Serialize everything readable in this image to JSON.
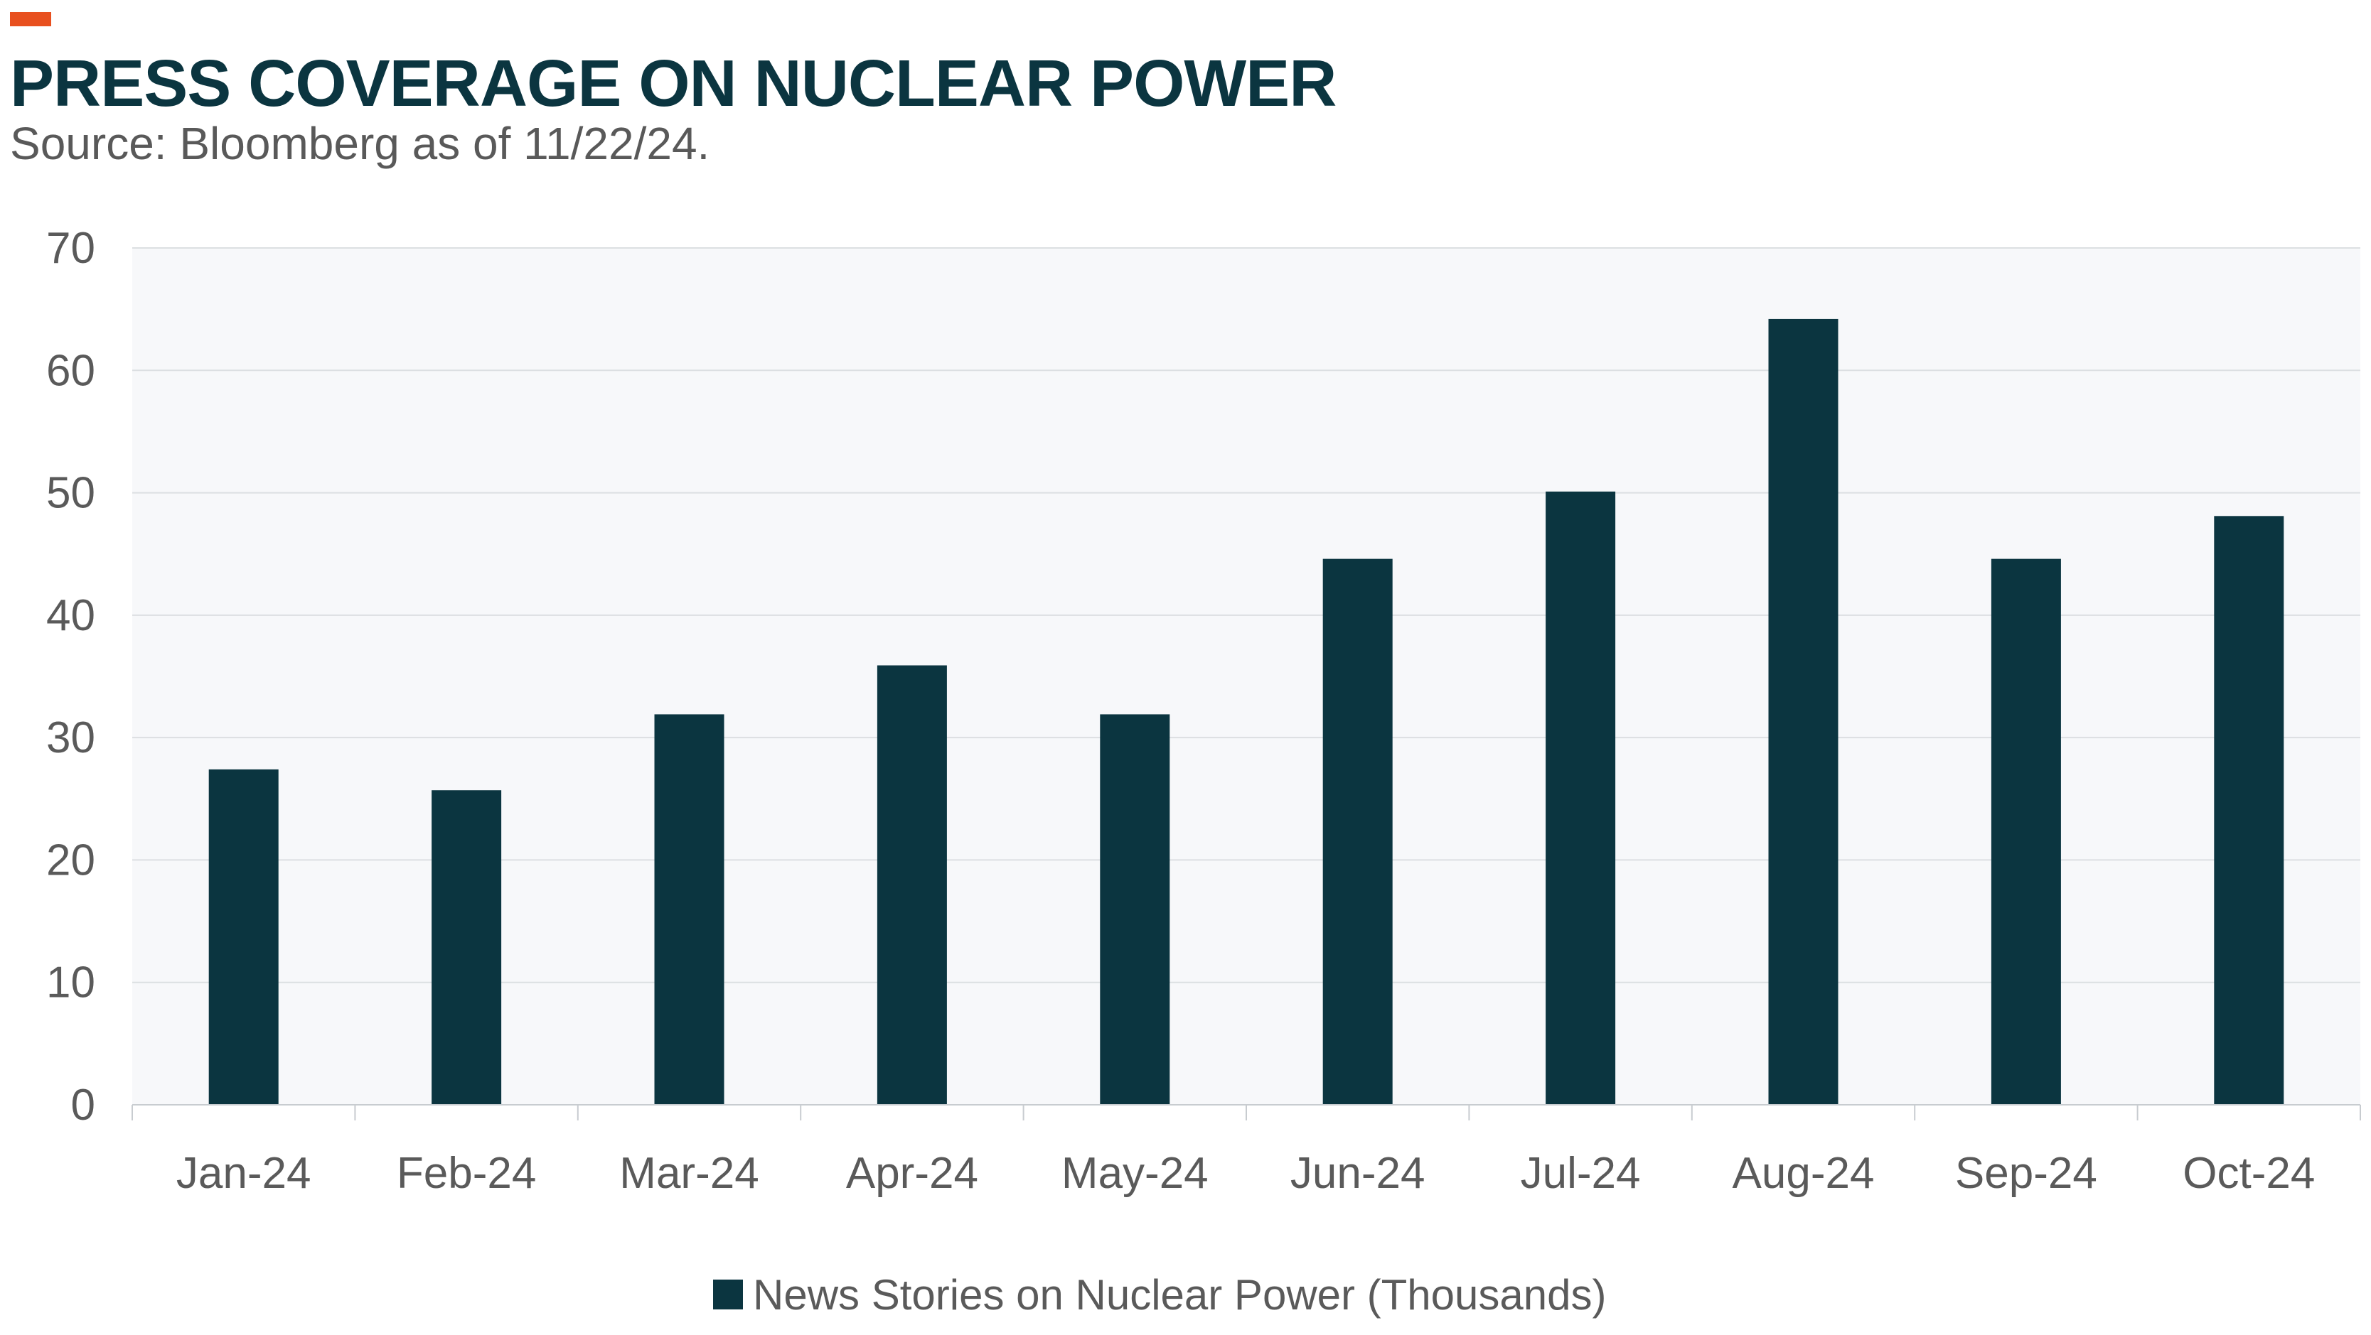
{
  "header": {
    "title": "PRESS COVERAGE ON NUCLEAR POWER",
    "subtitle": "Source: Bloomberg as of 11/22/24."
  },
  "colors": {
    "accent": "#e8501f",
    "title": "#0b3540",
    "subtitle": "#595959",
    "bar": "#0b3540",
    "plot_background": "#f7f8fa",
    "gridline": "#dcdfe2",
    "axis_text": "#5a5a5a"
  },
  "chart_data": {
    "type": "bar",
    "title": "PRESS COVERAGE ON NUCLEAR POWER",
    "subtitle": "Source: Bloomberg as of 11/22/24.",
    "categories": [
      "Jan-24",
      "Feb-24",
      "Mar-24",
      "Apr-24",
      "May-24",
      "Jun-24",
      "Jul-24",
      "Aug-24",
      "Sep-24",
      "Oct-24"
    ],
    "series": [
      {
        "name": "News Stories on Nuclear Power (Thousands)",
        "values": [
          27.4,
          25.7,
          31.9,
          35.9,
          31.9,
          44.6,
          50.1,
          64.2,
          44.6,
          48.1
        ]
      }
    ],
    "xlabel": "",
    "ylabel": "",
    "ylim": [
      0,
      70
    ],
    "yticks": [
      0,
      10,
      20,
      30,
      40,
      50,
      60,
      70
    ],
    "grid": true,
    "legend": "bottom-center"
  }
}
